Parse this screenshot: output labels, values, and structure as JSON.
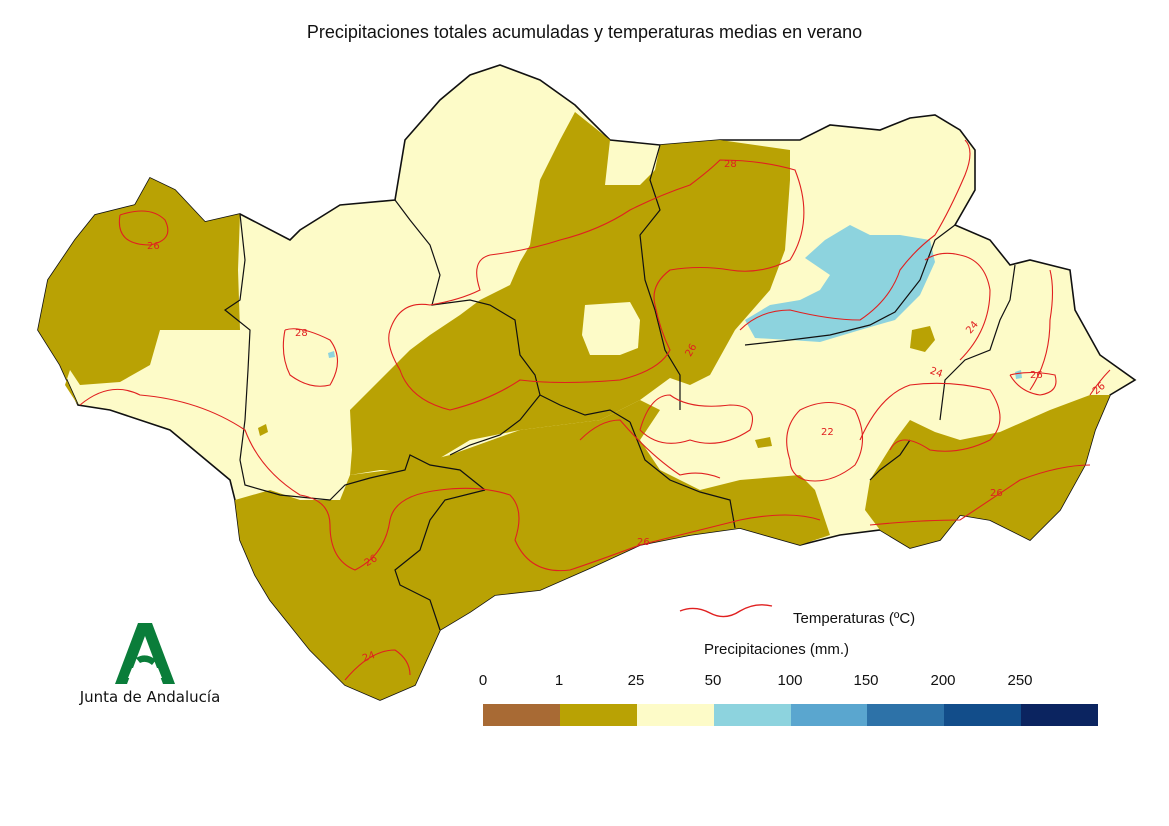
{
  "title": "Precipitaciones totales acumuladas y temperaturas medias en verano",
  "logo": {
    "text": "Junta de Andalucía",
    "icon": "junta-andalucia-logo"
  },
  "colors": {
    "precip_0_1": "#a86a34",
    "precip_1_25": "#b9a204",
    "precip_25_50": "#fdfbc8",
    "precip_50_100": "#8dd3de",
    "precip_100_150": "#5aa6cf",
    "precip_150_200": "#2d72a8",
    "precip_200_250": "#124d8a",
    "precip_250_plus": "#0b2460",
    "isotherm": "#e02020",
    "boundary": "#111111",
    "logo_green": "#0a7d3a"
  },
  "legend": {
    "temperature_label": "Temperaturas (ºC)",
    "precip_title": "Precipitaciones (mm.)",
    "precip_ticks": [
      "0",
      "1",
      "25",
      "50",
      "100",
      "150",
      "200",
      "250"
    ],
    "precip_classes": [
      "#a86a34",
      "#b9a204",
      "#fdfbc8",
      "#8dd3de",
      "#5aa6cf",
      "#2d72a8",
      "#124d8a",
      "#0b2460"
    ]
  },
  "isotherm_labels": [
    "26",
    "28",
    "28",
    "26",
    "26",
    "24",
    "24",
    "22",
    "26",
    "26",
    "26",
    "26",
    "24"
  ]
}
